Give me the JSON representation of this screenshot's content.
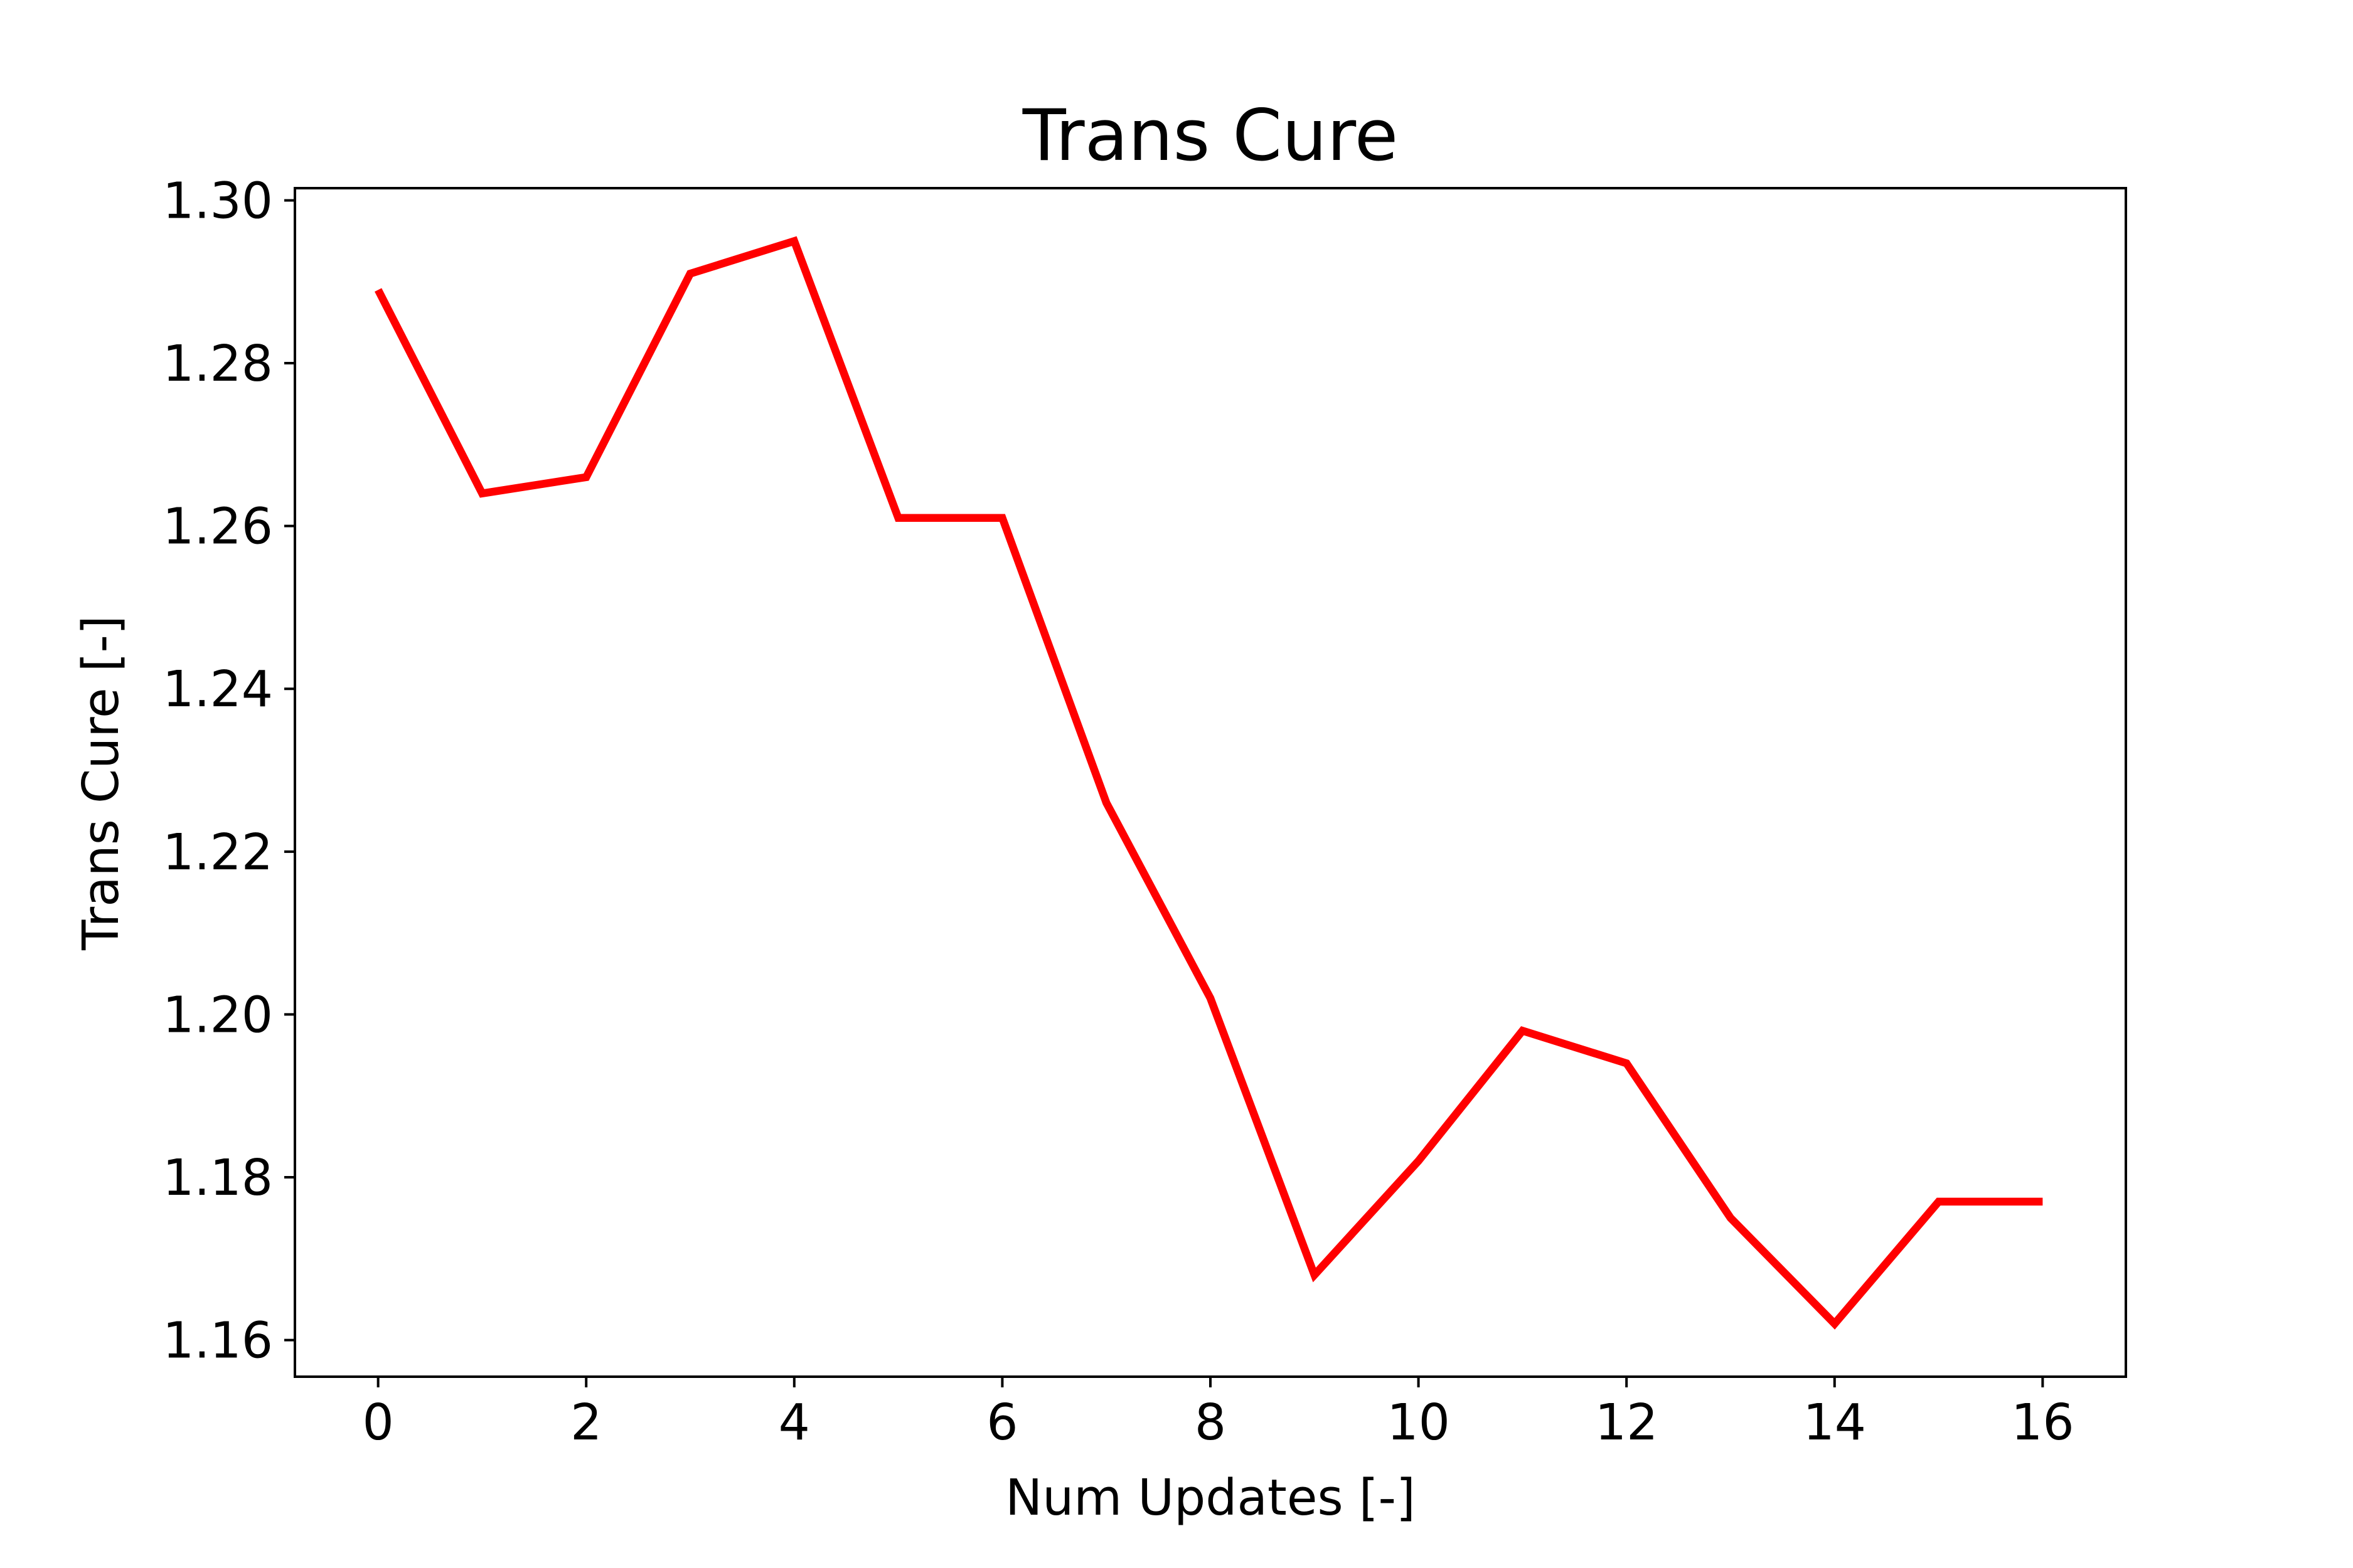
{
  "chart_data": {
    "type": "line",
    "title": "Trans Cure",
    "xlabel": "Num Updates [-]",
    "ylabel": "Trans Cure [-]",
    "x": [
      0,
      1,
      2,
      3,
      4,
      5,
      6,
      7,
      8,
      9,
      10,
      11,
      12,
      13,
      14,
      15,
      16
    ],
    "series": [
      {
        "values": [
          1.289,
          1.264,
          1.266,
          1.291,
          1.295,
          1.261,
          1.261,
          1.226,
          1.202,
          1.168,
          1.182,
          1.198,
          1.194,
          1.175,
          1.162,
          1.177,
          1.177
        ],
        "color": "#ff0000"
      }
    ],
    "xlim": [
      -0.8,
      16.8
    ],
    "ylim": [
      1.1555,
      1.3015
    ],
    "xticks": [
      0,
      2,
      4,
      6,
      8,
      10,
      12,
      14,
      16
    ],
    "xtick_labels": [
      "0",
      "2",
      "4",
      "6",
      "8",
      "10",
      "12",
      "14",
      "16"
    ],
    "yticks": [
      1.16,
      1.18,
      1.2,
      1.22,
      1.24,
      1.26,
      1.28,
      1.3
    ],
    "ytick_labels": [
      "1.16",
      "1.18",
      "1.20",
      "1.22",
      "1.24",
      "1.26",
      "1.28",
      "1.30"
    ],
    "grid": false,
    "legend": "none"
  }
}
